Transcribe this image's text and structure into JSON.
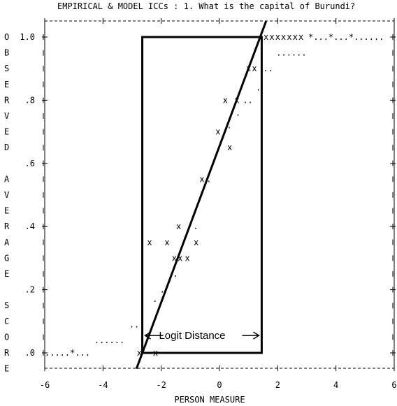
{
  "chart_data": {
    "type": "scatter",
    "title": "EMPIRICAL & MODEL ICCs : 1. What is the capital of Burundi?",
    "xlabel": "PERSON MEASURE",
    "ylabel_letters": [
      "O",
      "B",
      "S",
      "E",
      "R",
      "V",
      "E",
      "D",
      "",
      "A",
      "V",
      "E",
      "R",
      "A",
      "G",
      "E",
      "",
      "S",
      "C",
      "O",
      "R",
      "E"
    ],
    "xlim": [
      -6,
      6
    ],
    "ylim": [
      0.0,
      1.0
    ],
    "x_ticks": [
      "-6",
      "-4",
      "-2",
      "0",
      "2",
      "4",
      "6"
    ],
    "y_ticks": [
      "1.0",
      ".8",
      ".6",
      ".4",
      ".2",
      ".0"
    ],
    "y_tick_values": [
      1.0,
      0.8,
      0.6,
      0.4,
      0.2,
      0.0
    ],
    "grid": false,
    "empirical_marker": "x",
    "model_marker": ".",
    "empirical_points": [
      {
        "x": -2.75,
        "y": 0.0
      },
      {
        "x": -2.2,
        "y": 0.0
      },
      {
        "x": -2.4,
        "y": 0.35
      },
      {
        "x": -1.8,
        "y": 0.35
      },
      {
        "x": -1.4,
        "y": 0.4
      },
      {
        "x": -1.55,
        "y": 0.3
      },
      {
        "x": -1.35,
        "y": 0.3
      },
      {
        "x": -1.1,
        "y": 0.3
      },
      {
        "x": -0.8,
        "y": 0.35
      },
      {
        "x": -0.6,
        "y": 0.55
      },
      {
        "x": -0.05,
        "y": 0.7
      },
      {
        "x": 0.2,
        "y": 0.8
      },
      {
        "x": 0.35,
        "y": 0.65
      },
      {
        "x": 0.6,
        "y": 0.8
      },
      {
        "x": 1.0,
        "y": 0.9
      },
      {
        "x": 1.2,
        "y": 0.9
      },
      {
        "x": 1.6,
        "y": 1.0
      },
      {
        "x": 1.8,
        "y": 1.0
      },
      {
        "x": 2.0,
        "y": 1.0
      },
      {
        "x": 2.2,
        "y": 1.0
      },
      {
        "x": 2.4,
        "y": 1.0
      },
      {
        "x": 2.6,
        "y": 1.0
      },
      {
        "x": 2.8,
        "y": 1.0
      }
    ],
    "model_segments": [
      {
        "text": ".....*...",
        "x": -6.0,
        "y": 0.0
      },
      {
        "text": "......",
        "x": -4.3,
        "y": 0.04
      },
      {
        "text": "...",
        "x": -3.1,
        "y": 0.09
      },
      {
        "text": ".",
        "x": -2.3,
        "y": 0.17
      },
      {
        "text": ".",
        "x": -2.05,
        "y": 0.2
      },
      {
        "text": ".",
        "x": -1.6,
        "y": 0.25
      },
      {
        "text": ".",
        "x": -0.9,
        "y": 0.4
      },
      {
        "text": ".",
        "x": -0.45,
        "y": 0.55
      },
      {
        "text": ".",
        "x": 0.25,
        "y": 0.72
      },
      {
        "text": ".",
        "x": 0.55,
        "y": 0.76
      },
      {
        "text": "..",
        "x": 0.8,
        "y": 0.8
      },
      {
        "text": ".",
        "x": 1.25,
        "y": 0.84
      },
      {
        "text": "..",
        "x": 1.5,
        "y": 0.9
      },
      {
        "text": "......",
        "x": 1.95,
        "y": 0.95
      },
      {
        "text": "*...*...*......",
        "x": 3.05,
        "y": 1.0
      }
    ],
    "annotation": {
      "label": "Logit Distance",
      "box_x": [
        -2.65,
        1.45
      ],
      "box_y": [
        0.0,
        1.0
      ],
      "line_from": [
        -2.85,
        -0.05
      ],
      "line_to": [
        1.6,
        1.05
      ]
    }
  }
}
